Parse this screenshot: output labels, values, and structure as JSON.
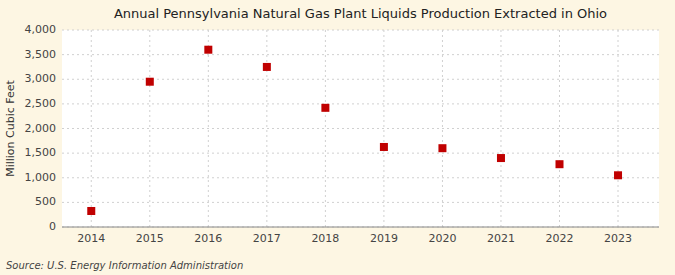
{
  "chart_data": {
    "type": "scatter",
    "title": "Annual Pennsylvania Natural Gas Plant Liquids Production Extracted in Ohio",
    "ylabel": "Million Cubic Feet",
    "source": "Source: U.S. Energy Information Administration",
    "x": [
      2014,
      2015,
      2016,
      2017,
      2018,
      2019,
      2020,
      2021,
      2022,
      2023
    ],
    "values": [
      325,
      2950,
      3600,
      3250,
      2420,
      1625,
      1600,
      1400,
      1275,
      1050
    ],
    "color": "#c00000",
    "marker": "square",
    "xlim": [
      2013.5,
      2023.7
    ],
    "xticks": [
      2014,
      2015,
      2016,
      2017,
      2018,
      2019,
      2020,
      2021,
      2022,
      2023
    ],
    "ylim": [
      0,
      4000
    ],
    "yticks": [
      0,
      500,
      {
        "value": 1000,
        "label": "1,000"
      },
      {
        "value": 1500,
        "label": "1,500"
      },
      {
        "value": 2000,
        "label": "2,000"
      },
      {
        "value": 2500,
        "label": "2,500"
      },
      {
        "value": 3000,
        "label": "3,000"
      },
      {
        "value": 3500,
        "label": "3,500"
      },
      {
        "value": 4000,
        "label": "4,000"
      }
    ],
    "grid": true
  }
}
